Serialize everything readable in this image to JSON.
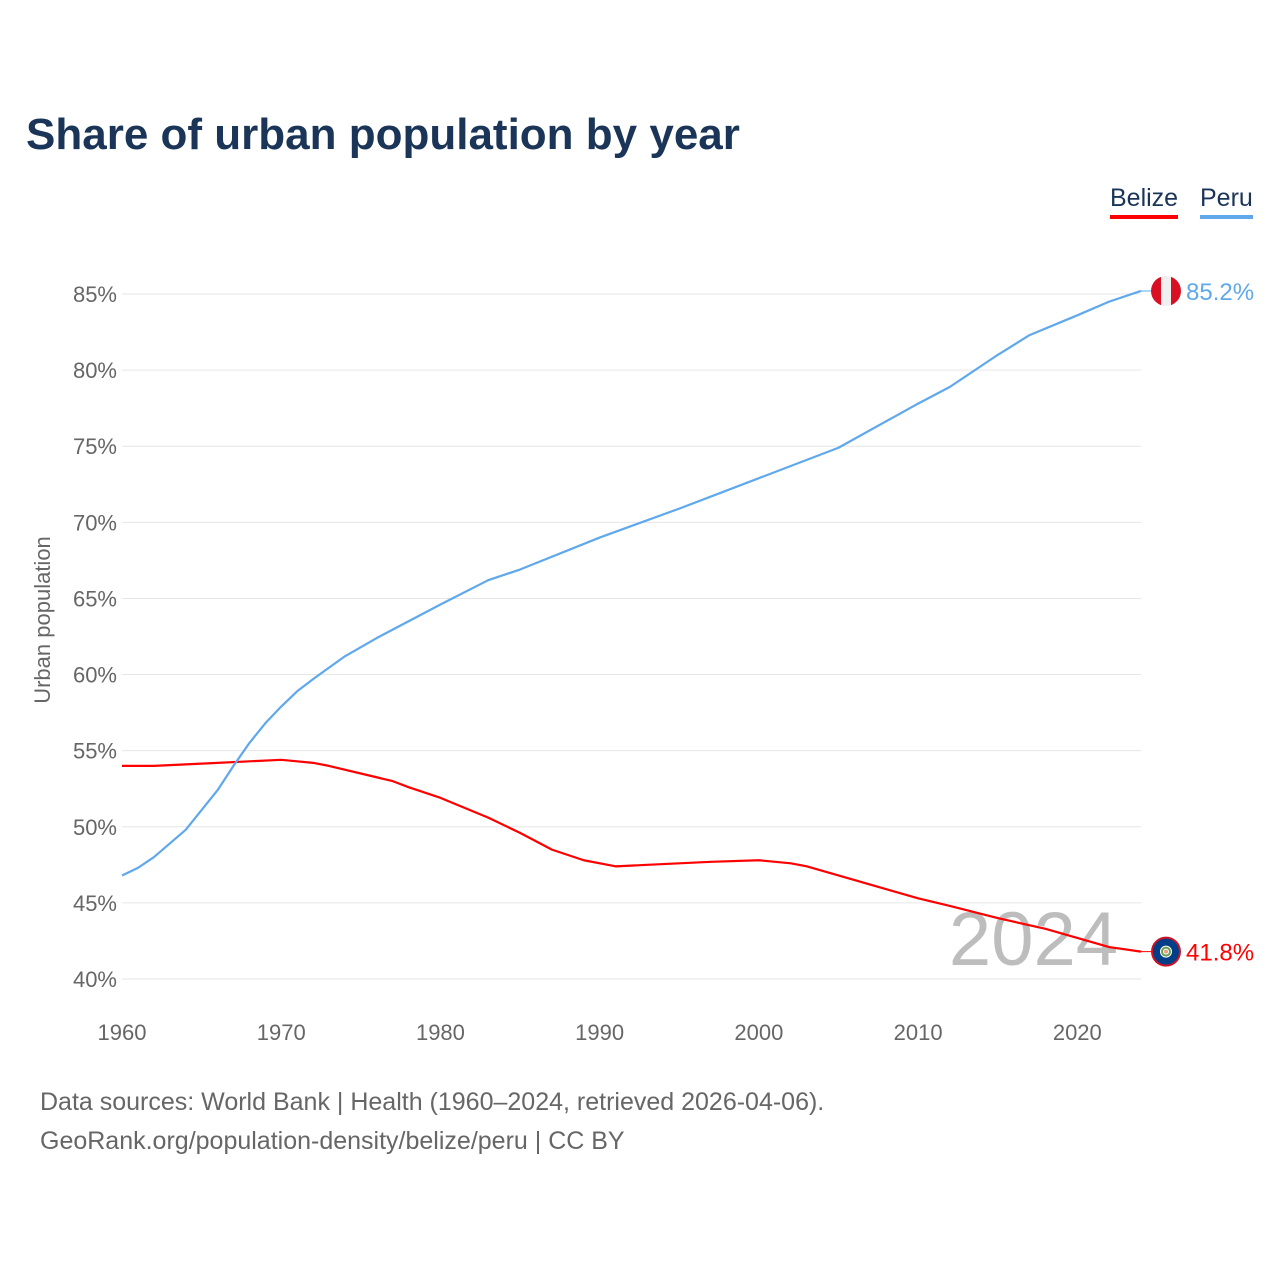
{
  "chart_data": {
    "type": "line",
    "title": "Share of urban population by year",
    "ylabel": "Urban population",
    "xlabel": "",
    "xlim": [
      1960,
      2024
    ],
    "ylim": [
      40,
      85
    ],
    "x_ticks": [
      "1960",
      "1970",
      "1980",
      "1990",
      "2000",
      "2010",
      "2020"
    ],
    "y_ticks": [
      "40%",
      "45%",
      "50%",
      "55%",
      "60%",
      "65%",
      "70%",
      "75%",
      "80%",
      "85%"
    ],
    "grid": true,
    "legend_position": "top-right",
    "watermark_year": "2024",
    "series": [
      {
        "name": "Belize",
        "color": "#ff0000",
        "end_label": "41.8%",
        "x": [
          1960,
          1962,
          1964,
          1966,
          1968,
          1970,
          1972,
          1973,
          1975,
          1977,
          1978,
          1980,
          1983,
          1985,
          1987,
          1989,
          1991,
          1993,
          1995,
          1997,
          2000,
          2002,
          2003,
          2005,
          2008,
          2010,
          2012,
          2015,
          2018,
          2020,
          2022,
          2024
        ],
        "y": [
          54.0,
          54.0,
          54.1,
          54.2,
          54.3,
          54.4,
          54.2,
          54.0,
          53.5,
          53.0,
          52.6,
          51.9,
          50.6,
          49.6,
          48.5,
          47.8,
          47.4,
          47.5,
          47.6,
          47.7,
          47.8,
          47.6,
          47.4,
          46.8,
          45.9,
          45.3,
          44.8,
          44.0,
          43.3,
          42.7,
          42.1,
          41.8
        ]
      },
      {
        "name": "Peru",
        "color": "#5fa8ec",
        "end_label": "85.2%",
        "x": [
          1960,
          1961,
          1962,
          1964,
          1966,
          1967,
          1968,
          1969,
          1970,
          1971,
          1972,
          1974,
          1976,
          1978,
          1980,
          1983,
          1985,
          1990,
          1995,
          2000,
          2005,
          2010,
          2012,
          2015,
          2017,
          2020,
          2022,
          2024
        ],
        "y": [
          46.8,
          47.3,
          48.0,
          49.8,
          52.4,
          54.0,
          55.5,
          56.8,
          57.9,
          58.9,
          59.7,
          61.2,
          62.4,
          63.5,
          64.6,
          66.2,
          66.9,
          69.0,
          70.9,
          72.9,
          74.9,
          77.8,
          78.9,
          81.0,
          82.3,
          83.6,
          84.5,
          85.2
        ]
      }
    ]
  },
  "legend": {
    "belize": "Belize",
    "peru": "Peru"
  },
  "footer": {
    "line1": "Data sources: World Bank | Health (1960–2024, retrieved 2026-04-06).",
    "line2": "GeoRank.org/population-density/belize/peru | CC BY"
  }
}
